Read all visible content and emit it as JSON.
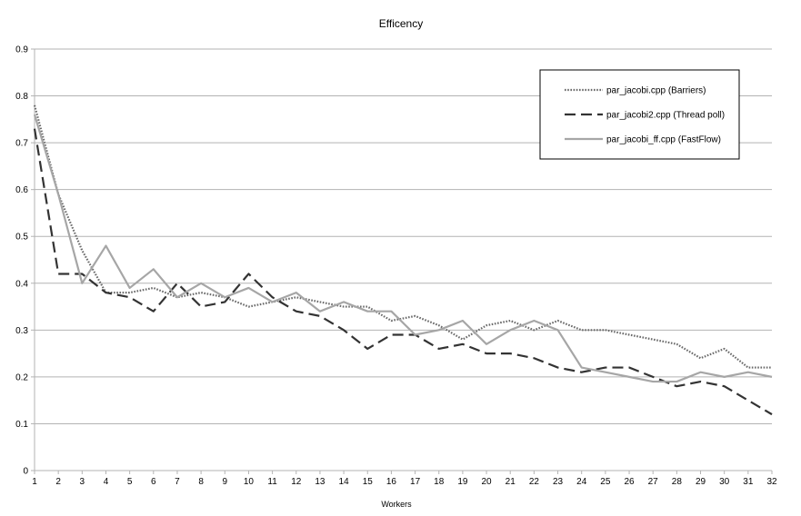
{
  "chart_data": {
    "type": "line",
    "title": "Efficency",
    "xlabel": "Workers",
    "ylabel": "",
    "x": [
      1,
      2,
      3,
      4,
      5,
      6,
      7,
      8,
      9,
      10,
      11,
      12,
      13,
      14,
      15,
      16,
      17,
      18,
      19,
      20,
      21,
      22,
      23,
      24,
      25,
      26,
      27,
      28,
      29,
      30,
      31,
      32
    ],
    "xlim": [
      1,
      32
    ],
    "ylim": [
      0,
      0.9
    ],
    "yticks": [
      "0",
      "0.1",
      "0.2",
      "0.3",
      "0.4",
      "0.5",
      "0.6",
      "0.7",
      "0.8",
      "0.9"
    ],
    "grid": "horizontal",
    "legend_position": "top-right",
    "series": [
      {
        "name": "par_jacobi.cpp (Barriers)",
        "style": "dotted",
        "color": "#6a6a6a",
        "values": [
          0.78,
          0.59,
          0.47,
          0.38,
          0.38,
          0.39,
          0.37,
          0.38,
          0.37,
          0.35,
          0.36,
          0.37,
          0.36,
          0.35,
          0.35,
          0.32,
          0.33,
          0.31,
          0.28,
          0.31,
          0.32,
          0.3,
          0.32,
          0.3,
          0.3,
          0.29,
          0.28,
          0.27,
          0.24,
          0.26,
          0.22,
          0.22
        ]
      },
      {
        "name": "par_jacobi2.cpp (Thread poll)",
        "style": "dashed",
        "color": "#333333",
        "values": [
          0.73,
          0.42,
          0.42,
          0.38,
          0.37,
          0.34,
          0.4,
          0.35,
          0.36,
          0.42,
          0.37,
          0.34,
          0.33,
          0.3,
          0.26,
          0.29,
          0.29,
          0.26,
          0.27,
          0.25,
          0.25,
          0.24,
          0.22,
          0.21,
          0.22,
          0.22,
          0.2,
          0.18,
          0.19,
          0.18,
          0.15,
          0.12
        ]
      },
      {
        "name": "par_jacobi_ff.cpp (FastFlow)",
        "style": "solid",
        "color": "#a6a6a6",
        "values": [
          0.76,
          0.59,
          0.4,
          0.48,
          0.39,
          0.43,
          0.37,
          0.4,
          0.37,
          0.39,
          0.36,
          0.38,
          0.34,
          0.36,
          0.34,
          0.34,
          0.29,
          0.3,
          0.32,
          0.27,
          0.3,
          0.32,
          0.3,
          0.22,
          0.21,
          0.2,
          0.19,
          0.19,
          0.21,
          0.2,
          0.21,
          0.2
        ]
      }
    ]
  }
}
